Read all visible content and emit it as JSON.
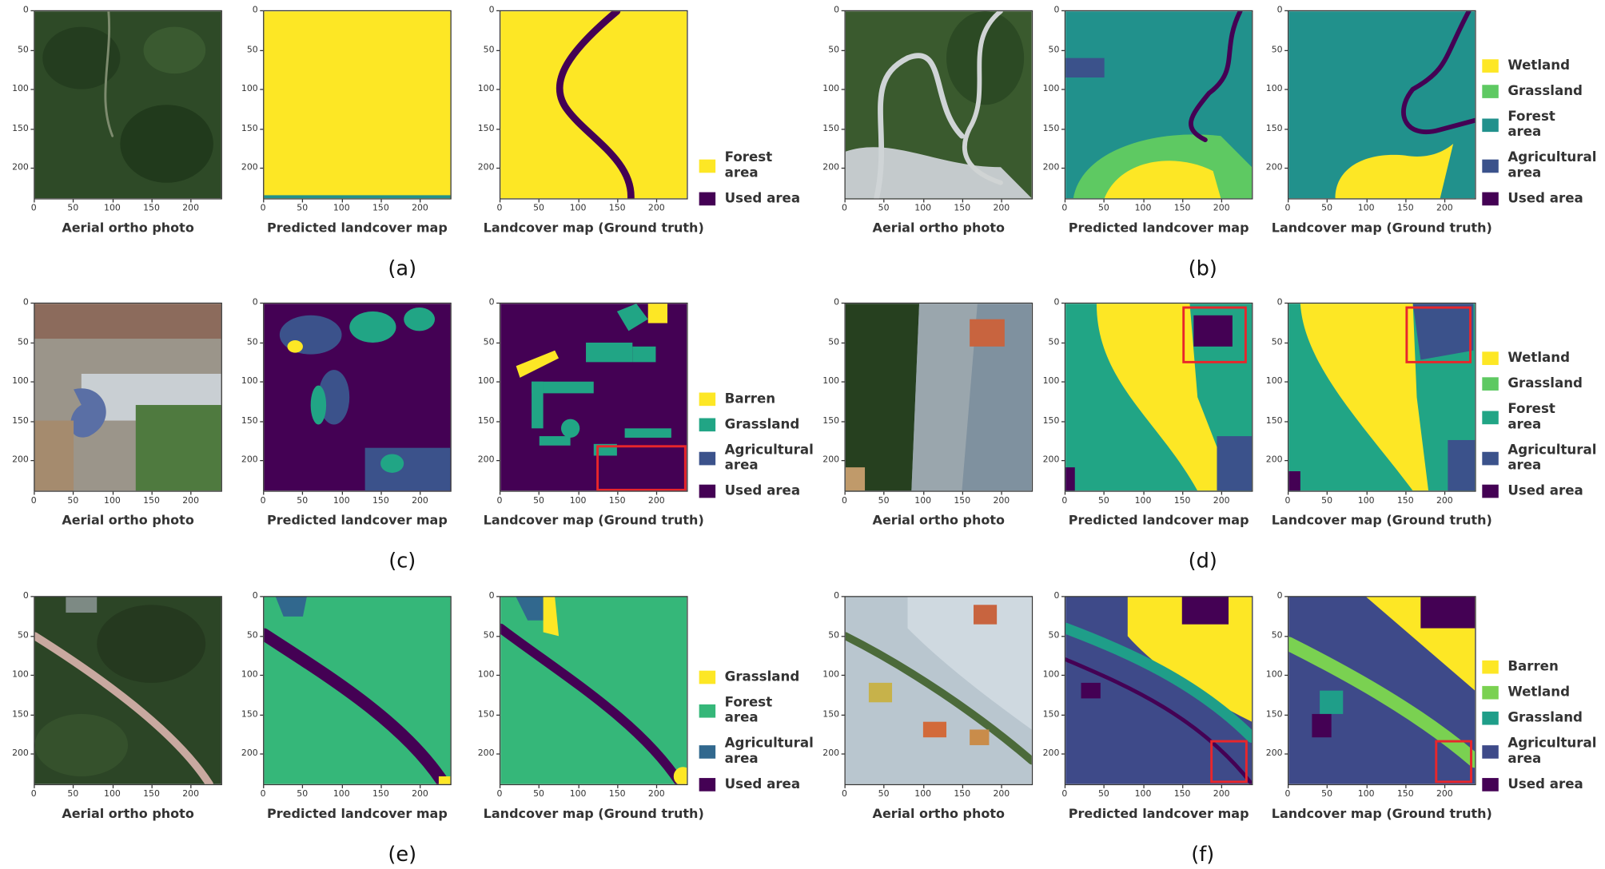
{
  "axis_ticks": {
    "x": [
      0,
      50,
      100,
      150,
      200
    ],
    "y": [
      0,
      50,
      100,
      150,
      200
    ]
  },
  "panels": [
    {
      "label": "(a)",
      "captions": [
        "Aerial ortho photo",
        "Predicted landcover map",
        "Landcover map  (Ground truth)"
      ],
      "legend": [
        {
          "name": "Forest area",
          "color": "#fde725"
        },
        {
          "name": "Used area",
          "color": "#440154"
        }
      ]
    },
    {
      "label": "(b)",
      "captions": [
        "Aerial ortho photo",
        "Predicted landcover map",
        "Landcover map  (Ground truth)"
      ],
      "legend": [
        {
          "name": "Wetland",
          "color": "#fde725"
        },
        {
          "name": "Grassland",
          "color": "#5ec962"
        },
        {
          "name": "Forest area",
          "color": "#21918c"
        },
        {
          "name": "Agricultural area",
          "color": "#3b528b"
        },
        {
          "name": "Used area",
          "color": "#440154"
        }
      ]
    },
    {
      "label": "(c)",
      "captions": [
        "Aerial ortho photo",
        "Predicted landcover map",
        "Landcover map  (Ground truth)"
      ],
      "legend": [
        {
          "name": "Barren",
          "color": "#fde725"
        },
        {
          "name": "Grassland",
          "color": "#21a585"
        },
        {
          "name": "Agricultural area",
          "color": "#3b528b"
        },
        {
          "name": "Used area",
          "color": "#440154"
        }
      ]
    },
    {
      "label": "(d)",
      "captions": [
        "Aerial ortho photo",
        "Predicted landcover map",
        "Landcover map  (Ground truth)"
      ],
      "legend": [
        {
          "name": "Wetland",
          "color": "#fde725"
        },
        {
          "name": "Grassland",
          "color": "#5ec962"
        },
        {
          "name": "Forest area",
          "color": "#21a585"
        },
        {
          "name": "Agricultural area",
          "color": "#3b528b"
        },
        {
          "name": "Used area",
          "color": "#440154"
        }
      ]
    },
    {
      "label": "(e)",
      "captions": [
        "Aerial ortho photo",
        "Predicted landcover map",
        "Landcover map  (Ground truth)"
      ],
      "legend": [
        {
          "name": "Grassland",
          "color": "#fde725"
        },
        {
          "name": "Forest area",
          "color": "#35b779"
        },
        {
          "name": "Agricultural area",
          "color": "#31688e"
        },
        {
          "name": "Used area",
          "color": "#440154"
        }
      ]
    },
    {
      "label": "(f)",
      "captions": [
        "Aerial ortho photo",
        "Predicted landcover map",
        "Landcover map  (Ground truth)"
      ],
      "legend": [
        {
          "name": "Barren",
          "color": "#fde725"
        },
        {
          "name": "Wetland",
          "color": "#7ad151"
        },
        {
          "name": "Grassland",
          "color": "#1f9e89"
        },
        {
          "name": "Agricultural area",
          "color": "#3e4a89"
        },
        {
          "name": "Used area",
          "color": "#440154"
        }
      ]
    }
  ]
}
